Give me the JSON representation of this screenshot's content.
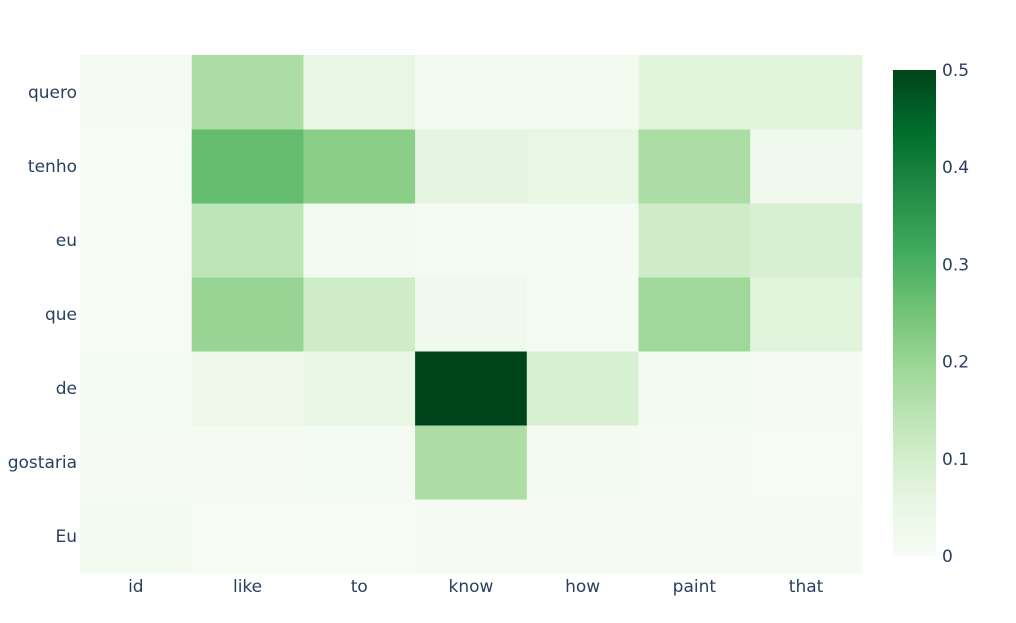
{
  "chart_data": {
    "type": "heatmap",
    "x_categories": [
      "id",
      "like",
      "to",
      "know",
      "how",
      "paint",
      "that"
    ],
    "y_categories": [
      "Eu",
      "gostaria",
      "de",
      "que",
      "eu",
      "tenho",
      "quero"
    ],
    "z": [
      [
        0.015,
        0.005,
        0.005,
        0.006,
        0.008,
        0.006,
        0.006
      ],
      [
        0.007,
        0.008,
        0.01,
        0.17,
        0.015,
        0.006,
        0.005
      ],
      [
        0.01,
        0.03,
        0.05,
        0.5,
        0.09,
        0.015,
        0.008
      ],
      [
        0.005,
        0.2,
        0.11,
        0.025,
        0.01,
        0.19,
        0.07
      ],
      [
        0.004,
        0.14,
        0.02,
        0.01,
        0.01,
        0.11,
        0.09
      ],
      [
        0.004,
        0.27,
        0.22,
        0.06,
        0.05,
        0.17,
        0.025
      ],
      [
        0.006,
        0.17,
        0.05,
        0.02,
        0.015,
        0.07,
        0.07
      ]
    ],
    "colorscale": "Greens",
    "colorbar": {
      "min": 0,
      "max": 0.5,
      "ticks": [
        "0",
        "0.1",
        "0.2",
        "0.3",
        "0.4",
        "0.5"
      ],
      "tick_values": [
        0,
        0.1,
        0.2,
        0.3,
        0.4,
        0.5
      ]
    },
    "title": "",
    "xlabel": "",
    "ylabel": ""
  }
}
